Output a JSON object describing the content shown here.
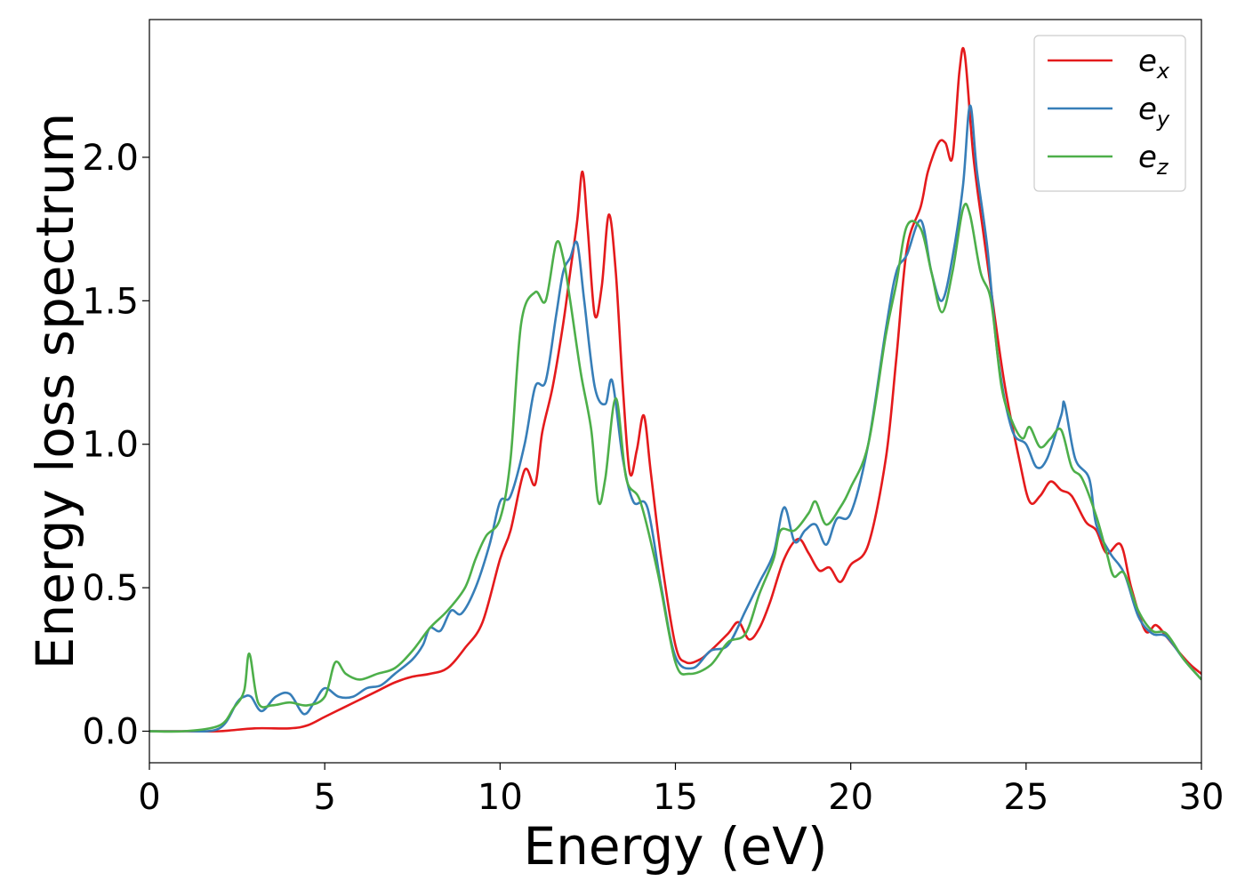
{
  "chart_data": {
    "type": "line",
    "title": "",
    "xlabel": "Energy (eV)",
    "ylabel": "Energy loss spectrum",
    "xlim": [
      0,
      30
    ],
    "ylim": [
      -0.11,
      2.48
    ],
    "xticks": [
      0,
      5,
      10,
      15,
      20,
      25,
      30
    ],
    "xtick_labels": [
      "0",
      "5",
      "10",
      "15",
      "20",
      "25",
      "30"
    ],
    "yticks": [
      0.0,
      0.5,
      1.0,
      1.5,
      2.0
    ],
    "ytick_labels": [
      "0.0",
      "0.5",
      "1.0",
      "1.5",
      "2.0"
    ],
    "grid": false,
    "legend_position": "top-right",
    "series": [
      {
        "name": "e",
        "name_subscript": "x",
        "color": "#e41a1c",
        "points": [
          [
            0,
            0.0
          ],
          [
            1,
            0.0
          ],
          [
            2,
            0.0
          ],
          [
            3,
            0.01
          ],
          [
            4,
            0.01
          ],
          [
            4.5,
            0.02
          ],
          [
            5,
            0.05
          ],
          [
            5.5,
            0.08
          ],
          [
            6,
            0.11
          ],
          [
            6.5,
            0.14
          ],
          [
            7,
            0.17
          ],
          [
            7.5,
            0.19
          ],
          [
            8,
            0.2
          ],
          [
            8.5,
            0.22
          ],
          [
            9,
            0.29
          ],
          [
            9.5,
            0.38
          ],
          [
            10,
            0.6
          ],
          [
            10.3,
            0.7
          ],
          [
            10.7,
            0.91
          ],
          [
            11,
            0.86
          ],
          [
            11.2,
            1.04
          ],
          [
            11.5,
            1.2
          ],
          [
            11.8,
            1.42
          ],
          [
            12,
            1.6
          ],
          [
            12.2,
            1.78
          ],
          [
            12.35,
            1.95
          ],
          [
            12.5,
            1.75
          ],
          [
            12.7,
            1.45
          ],
          [
            12.9,
            1.55
          ],
          [
            13.1,
            1.8
          ],
          [
            13.3,
            1.6
          ],
          [
            13.5,
            1.2
          ],
          [
            13.7,
            0.9
          ],
          [
            13.9,
            0.98
          ],
          [
            14.1,
            1.1
          ],
          [
            14.3,
            0.9
          ],
          [
            14.6,
            0.6
          ],
          [
            15,
            0.3
          ],
          [
            15.3,
            0.24
          ],
          [
            15.7,
            0.25
          ],
          [
            16,
            0.28
          ],
          [
            16.5,
            0.34
          ],
          [
            16.8,
            0.38
          ],
          [
            17.1,
            0.32
          ],
          [
            17.4,
            0.36
          ],
          [
            17.7,
            0.45
          ],
          [
            18.1,
            0.6
          ],
          [
            18.5,
            0.67
          ],
          [
            18.8,
            0.62
          ],
          [
            19.1,
            0.56
          ],
          [
            19.4,
            0.57
          ],
          [
            19.7,
            0.52
          ],
          [
            20,
            0.58
          ],
          [
            20.5,
            0.65
          ],
          [
            21,
            0.95
          ],
          [
            21.3,
            1.3
          ],
          [
            21.6,
            1.68
          ],
          [
            22,
            1.83
          ],
          [
            22.2,
            1.95
          ],
          [
            22.5,
            2.05
          ],
          [
            22.7,
            2.05
          ],
          [
            22.9,
            2.0
          ],
          [
            23.1,
            2.3
          ],
          [
            23.25,
            2.36
          ],
          [
            23.5,
            2.0
          ],
          [
            23.8,
            1.72
          ],
          [
            24.1,
            1.45
          ],
          [
            24.4,
            1.2
          ],
          [
            24.8,
            0.95
          ],
          [
            25.1,
            0.8
          ],
          [
            25.4,
            0.82
          ],
          [
            25.7,
            0.87
          ],
          [
            26,
            0.84
          ],
          [
            26.3,
            0.82
          ],
          [
            26.7,
            0.73
          ],
          [
            27,
            0.7
          ],
          [
            27.3,
            0.62
          ],
          [
            27.7,
            0.65
          ],
          [
            28,
            0.5
          ],
          [
            28.4,
            0.35
          ],
          [
            28.7,
            0.37
          ],
          [
            29,
            0.33
          ],
          [
            29.4,
            0.27
          ],
          [
            29.7,
            0.23
          ],
          [
            30,
            0.2
          ]
        ]
      },
      {
        "name": "e",
        "name_subscript": "y",
        "color": "#377eb8",
        "points": [
          [
            0,
            0.0
          ],
          [
            1,
            0.0
          ],
          [
            2,
            0.01
          ],
          [
            2.5,
            0.1
          ],
          [
            2.7,
            0.12
          ],
          [
            2.9,
            0.12
          ],
          [
            3.2,
            0.07
          ],
          [
            3.6,
            0.12
          ],
          [
            4,
            0.13
          ],
          [
            4.4,
            0.06
          ],
          [
            4.7,
            0.1
          ],
          [
            5,
            0.15
          ],
          [
            5.4,
            0.12
          ],
          [
            5.8,
            0.12
          ],
          [
            6.2,
            0.15
          ],
          [
            6.6,
            0.16
          ],
          [
            7,
            0.2
          ],
          [
            7.5,
            0.25
          ],
          [
            7.8,
            0.3
          ],
          [
            8,
            0.36
          ],
          [
            8.3,
            0.35
          ],
          [
            8.6,
            0.42
          ],
          [
            8.9,
            0.41
          ],
          [
            9.3,
            0.5
          ],
          [
            9.7,
            0.65
          ],
          [
            10,
            0.8
          ],
          [
            10.3,
            0.82
          ],
          [
            10.7,
            1.0
          ],
          [
            11,
            1.2
          ],
          [
            11.3,
            1.22
          ],
          [
            11.6,
            1.45
          ],
          [
            11.8,
            1.6
          ],
          [
            12,
            1.65
          ],
          [
            12.2,
            1.7
          ],
          [
            12.4,
            1.5
          ],
          [
            12.7,
            1.2
          ],
          [
            13,
            1.14
          ],
          [
            13.2,
            1.22
          ],
          [
            13.5,
            0.95
          ],
          [
            13.8,
            0.8
          ],
          [
            14.2,
            0.78
          ],
          [
            14.6,
            0.5
          ],
          [
            15,
            0.26
          ],
          [
            15.5,
            0.22
          ],
          [
            16,
            0.28
          ],
          [
            16.5,
            0.3
          ],
          [
            17,
            0.42
          ],
          [
            17.4,
            0.52
          ],
          [
            17.8,
            0.62
          ],
          [
            18.1,
            0.78
          ],
          [
            18.4,
            0.66
          ],
          [
            18.7,
            0.7
          ],
          [
            19,
            0.72
          ],
          [
            19.3,
            0.65
          ],
          [
            19.6,
            0.74
          ],
          [
            20,
            0.76
          ],
          [
            20.5,
            1.0
          ],
          [
            21,
            1.4
          ],
          [
            21.3,
            1.6
          ],
          [
            21.6,
            1.66
          ],
          [
            22,
            1.78
          ],
          [
            22.3,
            1.6
          ],
          [
            22.6,
            1.5
          ],
          [
            22.9,
            1.65
          ],
          [
            23.2,
            1.9
          ],
          [
            23.4,
            2.18
          ],
          [
            23.6,
            1.95
          ],
          [
            23.9,
            1.68
          ],
          [
            24.2,
            1.3
          ],
          [
            24.6,
            1.05
          ],
          [
            25,
            1.0
          ],
          [
            25.3,
            0.92
          ],
          [
            25.6,
            0.95
          ],
          [
            26,
            1.1
          ],
          [
            26.1,
            1.14
          ],
          [
            26.4,
            0.95
          ],
          [
            26.8,
            0.88
          ],
          [
            27,
            0.72
          ],
          [
            27.4,
            0.62
          ],
          [
            27.8,
            0.55
          ],
          [
            28.2,
            0.4
          ],
          [
            28.6,
            0.34
          ],
          [
            29,
            0.33
          ],
          [
            29.5,
            0.25
          ],
          [
            30,
            0.18
          ]
        ]
      },
      {
        "name": "e",
        "name_subscript": "z",
        "color": "#4daf4a",
        "points": [
          [
            0,
            0.0
          ],
          [
            1,
            0.0
          ],
          [
            2,
            0.02
          ],
          [
            2.4,
            0.08
          ],
          [
            2.7,
            0.14
          ],
          [
            2.85,
            0.27
          ],
          [
            3.1,
            0.1
          ],
          [
            3.5,
            0.09
          ],
          [
            4,
            0.1
          ],
          [
            4.5,
            0.09
          ],
          [
            5,
            0.12
          ],
          [
            5.3,
            0.24
          ],
          [
            5.6,
            0.2
          ],
          [
            6,
            0.18
          ],
          [
            6.5,
            0.2
          ],
          [
            7,
            0.22
          ],
          [
            7.5,
            0.28
          ],
          [
            8,
            0.36
          ],
          [
            8.5,
            0.42
          ],
          [
            9,
            0.5
          ],
          [
            9.3,
            0.6
          ],
          [
            9.6,
            0.68
          ],
          [
            10,
            0.74
          ],
          [
            10.3,
            0.95
          ],
          [
            10.6,
            1.42
          ],
          [
            11,
            1.53
          ],
          [
            11.3,
            1.5
          ],
          [
            11.6,
            1.7
          ],
          [
            11.8,
            1.65
          ],
          [
            12,
            1.5
          ],
          [
            12.3,
            1.25
          ],
          [
            12.6,
            1.05
          ],
          [
            12.8,
            0.8
          ],
          [
            13,
            0.88
          ],
          [
            13.3,
            1.16
          ],
          [
            13.6,
            0.88
          ],
          [
            14,
            0.8
          ],
          [
            14.5,
            0.55
          ],
          [
            15,
            0.24
          ],
          [
            15.4,
            0.2
          ],
          [
            16,
            0.23
          ],
          [
            16.5,
            0.31
          ],
          [
            17,
            0.34
          ],
          [
            17.4,
            0.48
          ],
          [
            17.8,
            0.6
          ],
          [
            18,
            0.7
          ],
          [
            18.4,
            0.7
          ],
          [
            18.8,
            0.76
          ],
          [
            19,
            0.8
          ],
          [
            19.3,
            0.72
          ],
          [
            19.7,
            0.78
          ],
          [
            20,
            0.85
          ],
          [
            20.5,
            1.0
          ],
          [
            21,
            1.38
          ],
          [
            21.3,
            1.56
          ],
          [
            21.6,
            1.76
          ],
          [
            22,
            1.75
          ],
          [
            22.3,
            1.6
          ],
          [
            22.6,
            1.46
          ],
          [
            22.9,
            1.6
          ],
          [
            23.2,
            1.82
          ],
          [
            23.4,
            1.8
          ],
          [
            23.7,
            1.6
          ],
          [
            24,
            1.5
          ],
          [
            24.3,
            1.2
          ],
          [
            24.6,
            1.08
          ],
          [
            24.9,
            1.02
          ],
          [
            25.1,
            1.06
          ],
          [
            25.4,
            0.99
          ],
          [
            25.7,
            1.02
          ],
          [
            26,
            1.05
          ],
          [
            26.3,
            0.92
          ],
          [
            26.6,
            0.88
          ],
          [
            27,
            0.75
          ],
          [
            27.3,
            0.62
          ],
          [
            27.5,
            0.54
          ],
          [
            27.8,
            0.55
          ],
          [
            28.2,
            0.42
          ],
          [
            28.6,
            0.35
          ],
          [
            29,
            0.34
          ],
          [
            29.5,
            0.25
          ],
          [
            30,
            0.18
          ]
        ]
      }
    ]
  }
}
